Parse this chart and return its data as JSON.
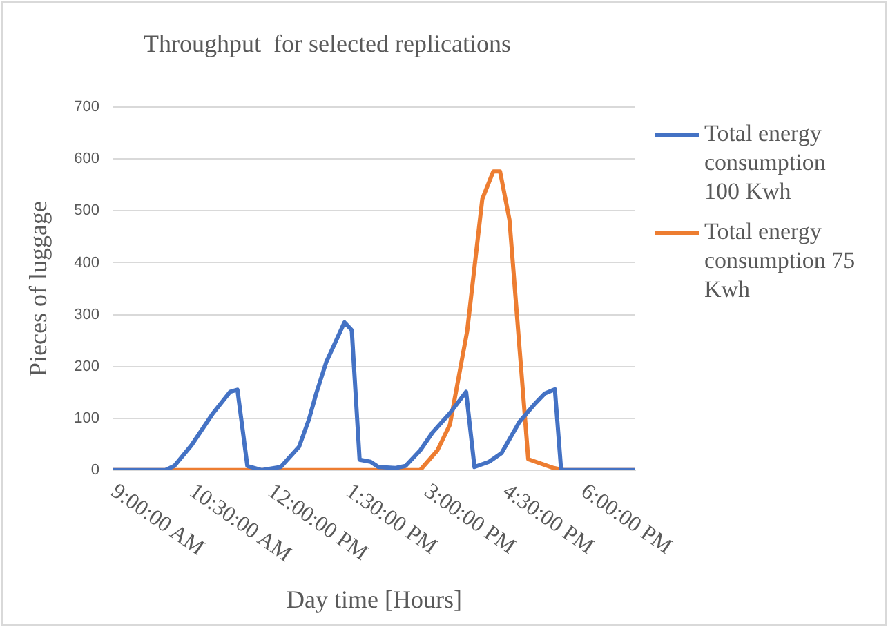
{
  "chart_data": {
    "type": "line",
    "title": "Throughput  for selected replications",
    "xlabel": "Day time [Hours]",
    "ylabel": "Pieces of luggage",
    "xlim": [
      9,
      19
    ],
    "ylim": [
      0,
      700
    ],
    "xticks": [
      {
        "value": 9,
        "label": "9:00:00 AM"
      },
      {
        "value": 10.5,
        "label": "10:30:00 AM"
      },
      {
        "value": 12,
        "label": "12:00:00 PM"
      },
      {
        "value": 13.5,
        "label": "1:30:00 PM"
      },
      {
        "value": 15,
        "label": "3:00:00 PM"
      },
      {
        "value": 16.5,
        "label": "4:30:00 PM"
      },
      {
        "value": 18,
        "label": "6:00:00 PM"
      }
    ],
    "yticks": [
      0,
      100,
      200,
      300,
      400,
      500,
      600,
      700
    ],
    "grid": "y",
    "legend": "right",
    "series": [
      {
        "name": "Total energy consumption 100 Kwh",
        "color": "#4472c4",
        "x": [
          9,
          10,
          10.17,
          10.5,
          10.9,
          11.24,
          11.38,
          11.57,
          11.85,
          12.21,
          12.56,
          12.75,
          12.89,
          13.08,
          13.43,
          13.57,
          13.72,
          13.93,
          14.08,
          14.41,
          14.6,
          14.88,
          15.12,
          15.45,
          15.76,
          15.92,
          16.2,
          16.44,
          16.78,
          17.06,
          17.27,
          17.46,
          17.58,
          19
        ],
        "values": [
          0,
          0,
          8,
          48,
          108,
          151,
          155,
          8,
          0,
          6,
          45,
          98,
          148,
          208,
          285,
          270,
          20,
          16,
          6,
          4,
          8,
          38,
          73,
          110,
          151,
          6,
          16,
          33,
          93,
          126,
          148,
          156,
          0,
          0
        ]
      },
      {
        "name": "Total energy consumption 75 Kwh",
        "color": "#ed7d31",
        "x": [
          9,
          14.88,
          15.21,
          15.45,
          15.78,
          16.07,
          16.28,
          16.41,
          16.59,
          16.95,
          17.44,
          17.63,
          19
        ],
        "values": [
          0,
          0,
          38,
          88,
          268,
          523,
          576,
          576,
          483,
          21,
          4,
          0,
          0
        ]
      }
    ]
  }
}
